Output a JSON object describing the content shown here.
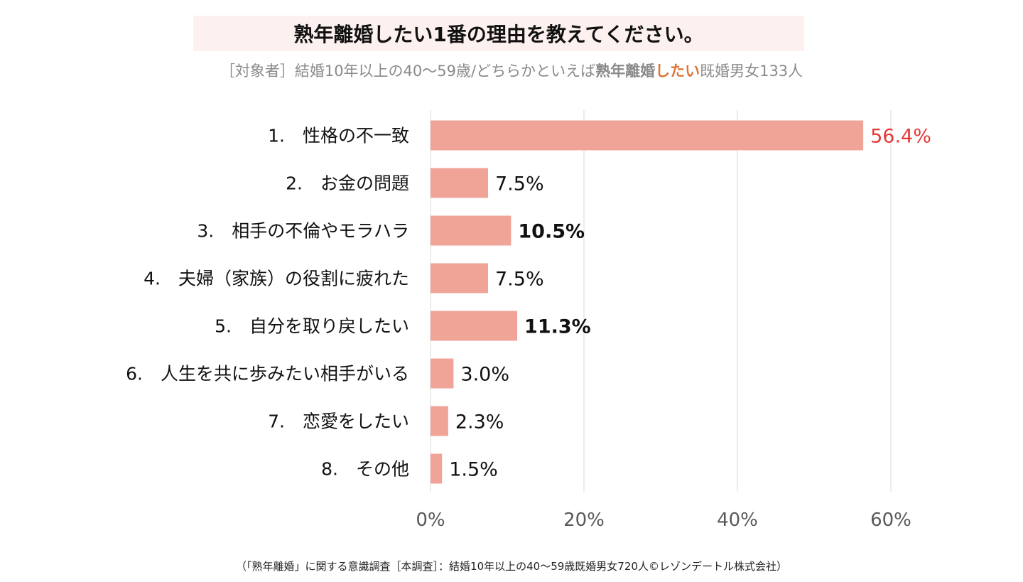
{
  "chart_data": {
    "type": "bar",
    "orientation": "horizontal",
    "title": "熟年離婚したい1番の理由を教えてください。",
    "subtitle_prefix": "［対象者］結婚10年以上の40～59歳/どちらかといえば",
    "subtitle_bold1": "熟年離婚",
    "subtitle_bold2": "したい",
    "subtitle_suffix": "既婚男女133人",
    "categories": [
      "1.　性格の不一致",
      "2.　お金の問題",
      "3.　相手の不倫やモラハラ",
      "4.　夫婦（家族）の役割に疲れた",
      "5.　自分を取り戻したい",
      "6.　人生を共に歩みたい相手がいる",
      "7.　恋愛をしたい",
      "8.　その他"
    ],
    "values": [
      56.4,
      7.5,
      10.5,
      7.5,
      11.3,
      3.0,
      2.3,
      1.5
    ],
    "value_labels": [
      "56.4%",
      "7.5%",
      "10.5%",
      "7.5%",
      "11.3%",
      "3.0%",
      "2.3%",
      "1.5%"
    ],
    "label_emphasis": [
      "highlight",
      "normal",
      "bold",
      "normal",
      "bold",
      "normal",
      "normal",
      "normal"
    ],
    "xlim": [
      0,
      60
    ],
    "xticks": [
      0,
      20,
      40,
      60
    ],
    "xtick_labels": [
      "0%",
      "20%",
      "40%",
      "60%"
    ],
    "grid": true,
    "legend": "none",
    "footnote": "（「熟年離婚」に関する意識調査［本調査］：結婚10年以上の40～59歳既婚男女720人©レゾンデートル株式会社）"
  },
  "colors": {
    "bar": "#f0a397",
    "highlight": "#e53935",
    "grid": "#d9d9d9",
    "tick_text": "#595959",
    "label_text": "#111111"
  }
}
